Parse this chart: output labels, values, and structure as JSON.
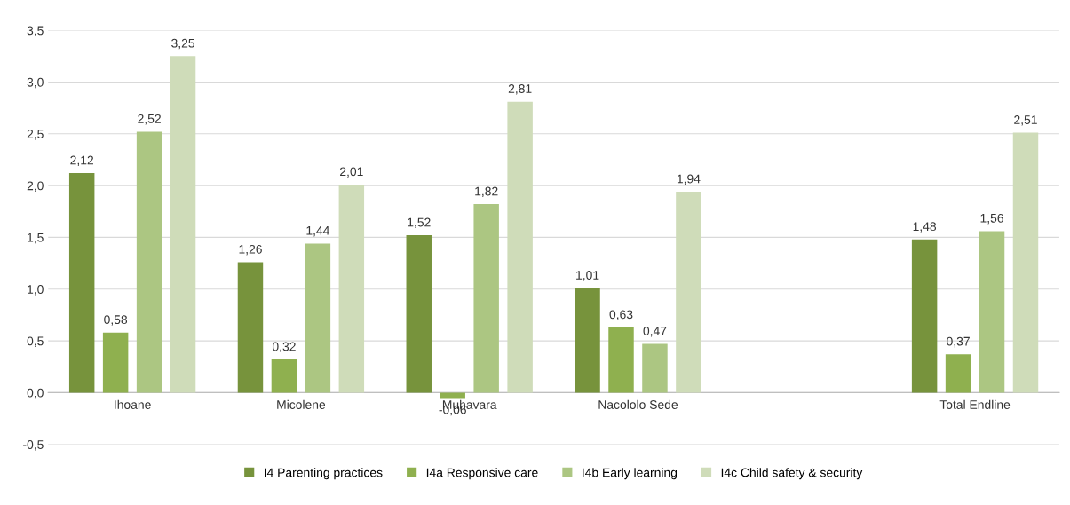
{
  "chart_data": {
    "type": "bar",
    "categories": [
      "Ihoane",
      "Micolene",
      "Muhavara",
      "Nacololo Sede",
      null,
      "Total Endline"
    ],
    "series": [
      {
        "name": "I4 Parenting practices",
        "color": "#77933c",
        "values": [
          2.12,
          1.26,
          1.52,
          1.01,
          null,
          1.48
        ],
        "value_labels": [
          "2,12",
          "1,26",
          "1,52",
          "1,01",
          null,
          "1,48"
        ]
      },
      {
        "name": "I4a Responsive care",
        "color": "#8fb04f",
        "values": [
          0.58,
          0.32,
          -0.06,
          0.63,
          null,
          0.37
        ],
        "value_labels": [
          "0,58",
          "0,32",
          "-0,06",
          "0,63",
          null,
          "0,37"
        ]
      },
      {
        "name": "I4b Early learning",
        "color": "#acc682",
        "values": [
          2.52,
          1.44,
          1.82,
          0.47,
          null,
          1.56
        ],
        "value_labels": [
          "2,52",
          "1,44",
          "1,82",
          "0,47",
          null,
          "1,56"
        ]
      },
      {
        "name": "I4c Child safety & security",
        "color": "#cfdcb9",
        "values": [
          3.25,
          2.01,
          2.81,
          1.94,
          null,
          2.51
        ],
        "value_labels": [
          "3,25",
          "2,01",
          "2,81",
          "1,94",
          null,
          "2,51"
        ]
      }
    ],
    "ylim": [
      -0.5,
      3.5
    ],
    "yticks": [
      {
        "value": -0.5,
        "label": "-0,5"
      },
      {
        "value": 0,
        "label": "0,0"
      },
      {
        "value": 0.5,
        "label": "0,5"
      },
      {
        "value": 1,
        "label": "1,0"
      },
      {
        "value": 1.5,
        "label": "1,5"
      },
      {
        "value": 2,
        "label": "2,0"
      },
      {
        "value": 2.5,
        "label": "2,5"
      },
      {
        "value": 3,
        "label": "3,0"
      },
      {
        "value": 3.5,
        "label": "3,5"
      }
    ],
    "grid": "y",
    "legend": "bottom"
  }
}
